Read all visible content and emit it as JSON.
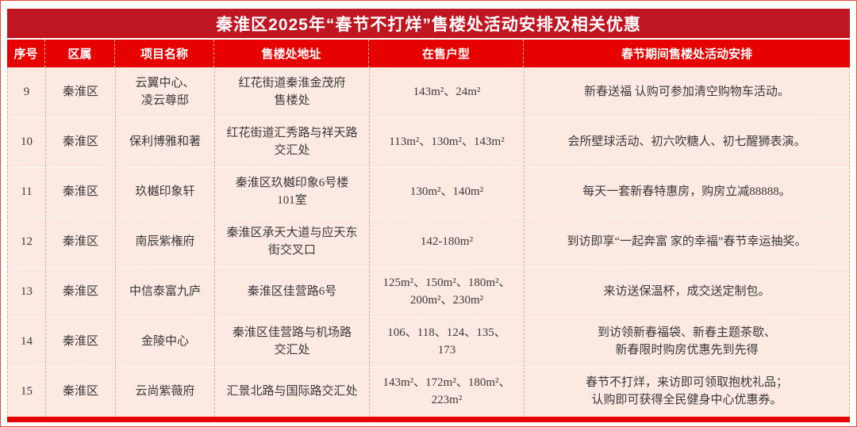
{
  "page": {
    "title": "秦淮区2025年“春节不打烊”售楼处活动安排及相关优惠"
  },
  "colors": {
    "title_bg": "#c01622",
    "header_bg": "#e60000",
    "row_bg": "#fce9e2",
    "cell_border": "#f1a892",
    "body_text": "#3a3a3a",
    "header_text": "#ffffff"
  },
  "table": {
    "columns": [
      "序号",
      "区属",
      "项目名称",
      "售楼处地址",
      "在售户型",
      "春节期间售楼处活动安排"
    ],
    "rows": [
      {
        "no": "9",
        "district": "秦淮区",
        "project": "云翼中心、\n凌云尊邸",
        "address": "红花街道秦淮金茂府\n售楼处",
        "units": "143m²、24m²",
        "activity": "新春送福  认购可参加清空购物车活动。"
      },
      {
        "no": "10",
        "district": "秦淮区",
        "project": "保利博雅和著",
        "address": "红花街道汇秀路与祥天路\n交汇处",
        "units": "113m²、130m²、143m²",
        "activity": "会所壁球活动、初六吹糖人、初七醒狮表演。"
      },
      {
        "no": "11",
        "district": "秦淮区",
        "project": "玖樾印象轩",
        "address": "秦淮区玖樾印象6号楼\n101室",
        "units": "130m²、140m²",
        "activity": "每天一套新春特惠房，购房立减88888。"
      },
      {
        "no": "12",
        "district": "秦淮区",
        "project": "南辰紫権府",
        "address": "秦淮区承天大道与应天东\n街交叉口",
        "units": "142-180m²",
        "activity": "到访即享“一起奔富  家的幸福”春节幸运抽奖。"
      },
      {
        "no": "13",
        "district": "秦淮区",
        "project": "中信泰富九庐",
        "address": "秦淮区佳营路6号",
        "units": "125m²、150m²、180m²、\n200m²、230m²",
        "activity": "来访送保温杯，成交送定制包。"
      },
      {
        "no": "14",
        "district": "秦淮区",
        "project": "金陵中心",
        "address": "秦淮区佳营路与机场路\n交汇处",
        "units": "106、118、124、135、\n173",
        "activity": "到访领新春福袋、新春主题茶歇、\n新春限时购房优惠先到先得"
      },
      {
        "no": "15",
        "district": "秦淮区",
        "project": "云尚紫薇府",
        "address": "汇景北路与国际路交汇处",
        "units": "143m²、172m²、180m²、\n223m²",
        "activity": "春节不打烊，来访即可领取抱枕礼品；\n认购即可获得全民健身中心优惠券。"
      }
    ]
  }
}
